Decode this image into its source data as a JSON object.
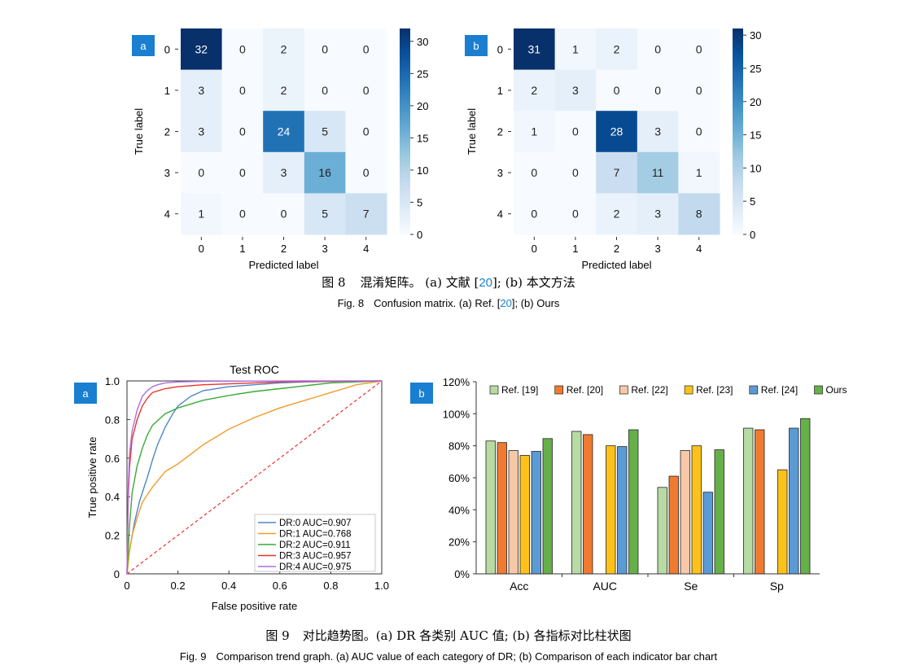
{
  "fig8": {
    "caption_cn_prefix": "图 8",
    "caption_cn_text": "混淆矩阵。 (a) 文献 [",
    "caption_cn_ref": "20",
    "caption_cn_tail": "];  (b) 本文方法",
    "caption_en_prefix": "Fig. 8",
    "caption_en_text": "Confusion matrix. (a) Ref. [",
    "caption_en_ref": "20",
    "caption_en_tail": "]; (b) Ours"
  },
  "fig9": {
    "caption_cn_prefix": "图 9",
    "caption_cn_text": "对比趋势图。(a) DR 各类别 AUC 值;  (b) 各指标对比柱状图",
    "caption_en_prefix": "Fig. 9",
    "caption_en_text": "Comparison trend graph. (a) AUC value of each category of DR; (b) Comparison of each indicator bar chart"
  },
  "colors": {
    "panel_tag_bg": "#1a7fd0",
    "panel_tag_fg": "#ffffff"
  },
  "chart_data": [
    {
      "id": "cm_a",
      "type": "heatmap",
      "panel_label": "a",
      "xlabel": "Predicted label",
      "ylabel": "True label",
      "row_labels": [
        "0",
        "1",
        "2",
        "3",
        "4"
      ],
      "col_labels": [
        "0",
        "1",
        "2",
        "3",
        "4"
      ],
      "matrix": [
        [
          32,
          0,
          2,
          0,
          0
        ],
        [
          3,
          0,
          2,
          0,
          0
        ],
        [
          3,
          0,
          24,
          5,
          0
        ],
        [
          0,
          0,
          3,
          16,
          0
        ],
        [
          1,
          0,
          0,
          5,
          7
        ]
      ],
      "colorbar_range": [
        0,
        32
      ],
      "colorbar_ticks": [
        "0",
        "5",
        "10",
        "15",
        "20",
        "25",
        "30"
      ]
    },
    {
      "id": "cm_b",
      "type": "heatmap",
      "panel_label": "b",
      "xlabel": "Predicted label",
      "ylabel": "True label",
      "row_labels": [
        "0",
        "1",
        "2",
        "3",
        "4"
      ],
      "col_labels": [
        "0",
        "1",
        "2",
        "3",
        "4"
      ],
      "matrix": [
        [
          31,
          1,
          2,
          0,
          0
        ],
        [
          2,
          3,
          0,
          0,
          0
        ],
        [
          1,
          0,
          28,
          3,
          0
        ],
        [
          0,
          0,
          7,
          11,
          1
        ],
        [
          0,
          0,
          2,
          3,
          8
        ]
      ],
      "colorbar_range": [
        0,
        31
      ],
      "colorbar_ticks": [
        "0",
        "5",
        "10",
        "15",
        "20",
        "25",
        "30"
      ]
    },
    {
      "id": "roc",
      "type": "line",
      "panel_label": "a",
      "title": "Test ROC",
      "xlabel": "False positive rate",
      "ylabel": "True positive rate",
      "xlim": [
        0,
        1
      ],
      "ylim": [
        0,
        1
      ],
      "x_ticks": [
        "0",
        "0.2",
        "0.4",
        "0.6",
        "0.8",
        "1.0"
      ],
      "y_ticks": [
        "0",
        "0.2",
        "0.4",
        "0.6",
        "0.8",
        "1.0"
      ],
      "legend_position": "lower-right",
      "diagonal_color": "#e8342a",
      "series": [
        {
          "name": "DR:0 AUC=0.907",
          "color": "#4a86c8",
          "x": [
            0,
            0.01,
            0.03,
            0.05,
            0.08,
            0.1,
            0.12,
            0.15,
            0.18,
            0.2,
            0.25,
            0.3,
            0.4,
            0.5,
            0.6,
            0.7,
            0.8,
            0.9,
            1.0
          ],
          "y": [
            0,
            0.12,
            0.27,
            0.38,
            0.5,
            0.59,
            0.67,
            0.76,
            0.83,
            0.87,
            0.92,
            0.95,
            0.97,
            0.98,
            0.99,
            0.995,
            0.997,
            0.999,
            1.0
          ]
        },
        {
          "name": "DR:1 AUC=0.768",
          "color": "#f39a2b",
          "x": [
            0,
            0.01,
            0.02,
            0.04,
            0.06,
            0.1,
            0.15,
            0.2,
            0.25,
            0.3,
            0.4,
            0.5,
            0.6,
            0.7,
            0.75,
            0.8,
            0.85,
            0.9,
            0.95,
            1.0
          ],
          "y": [
            0,
            0.12,
            0.2,
            0.29,
            0.37,
            0.45,
            0.53,
            0.57,
            0.62,
            0.67,
            0.75,
            0.81,
            0.86,
            0.9,
            0.92,
            0.94,
            0.96,
            0.98,
            0.99,
            1.0
          ]
        },
        {
          "name": "DR:2 AUC=0.911",
          "color": "#3aaa35",
          "x": [
            0,
            0.01,
            0.02,
            0.04,
            0.06,
            0.08,
            0.1,
            0.15,
            0.2,
            0.25,
            0.3,
            0.4,
            0.5,
            0.6,
            0.7,
            0.8,
            0.9,
            1.0
          ],
          "y": [
            0,
            0.25,
            0.42,
            0.56,
            0.65,
            0.72,
            0.77,
            0.83,
            0.86,
            0.88,
            0.9,
            0.925,
            0.945,
            0.96,
            0.975,
            0.99,
            0.995,
            1.0
          ]
        },
        {
          "name": "DR:3 AUC=0.957",
          "color": "#e8342a",
          "x": [
            0,
            0.005,
            0.01,
            0.02,
            0.04,
            0.06,
            0.08,
            0.1,
            0.15,
            0.2,
            0.3,
            0.4,
            0.5,
            0.6,
            0.7,
            0.8,
            0.9,
            1.0
          ],
          "y": [
            0,
            0.4,
            0.55,
            0.7,
            0.8,
            0.87,
            0.91,
            0.94,
            0.96,
            0.97,
            0.98,
            0.985,
            0.99,
            0.995,
            0.997,
            0.998,
            0.999,
            1.0
          ]
        },
        {
          "name": "DR:4 AUC=0.975",
          "color": "#b06be0",
          "x": [
            0,
            0.005,
            0.01,
            0.02,
            0.04,
            0.06,
            0.08,
            0.1,
            0.12,
            0.15,
            0.2,
            0.3,
            0.5,
            0.7,
            1.0
          ],
          "y": [
            0,
            0.45,
            0.62,
            0.74,
            0.85,
            0.92,
            0.95,
            0.97,
            0.98,
            0.99,
            0.995,
            0.998,
            0.999,
            1.0,
            1.0
          ]
        }
      ]
    },
    {
      "id": "bars",
      "type": "bar",
      "panel_label": "b",
      "categories": [
        "Acc",
        "AUC",
        "Se",
        "Sp"
      ],
      "ylim": [
        0,
        120
      ],
      "y_ticks": [
        "0%",
        "20%",
        "40%",
        "60%",
        "80%",
        "100%",
        "120%"
      ],
      "legend_position": "top",
      "series": [
        {
          "name": "Ref. [19]",
          "color": "#b8dba4",
          "values": [
            83,
            89,
            54,
            91
          ]
        },
        {
          "name": "Ref. [20]",
          "color": "#f07a30",
          "values": [
            82,
            87,
            61,
            90
          ]
        },
        {
          "name": "Ref. [22]",
          "color": "#f6c8a8",
          "values": [
            77,
            null,
            77,
            null
          ]
        },
        {
          "name": "Ref. [23]",
          "color": "#fcc21b",
          "values": [
            74,
            80,
            80,
            65
          ]
        },
        {
          "name": "Ref. [24]",
          "color": "#5b9bd5",
          "values": [
            76.5,
            79.5,
            51,
            91
          ]
        },
        {
          "name": "Ours",
          "color": "#66b04a",
          "values": [
            84.5,
            90,
            77.5,
            97
          ]
        }
      ]
    }
  ]
}
